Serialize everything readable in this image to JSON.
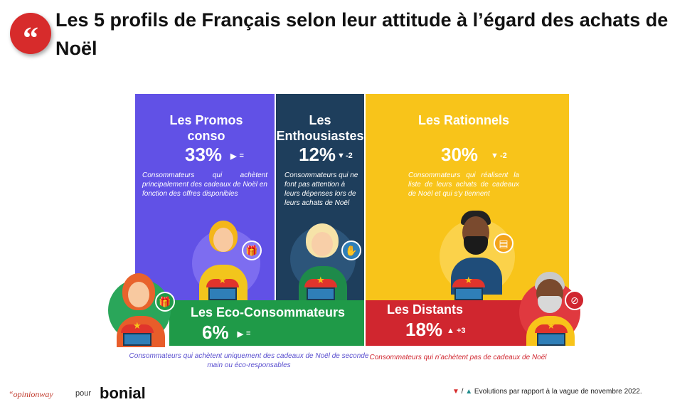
{
  "header": {
    "quote_mark": "“",
    "title": "Les 5 profils de Français selon leur attitude à l’égard des achats de Noël"
  },
  "colors": {
    "purple": "#6151e6",
    "navy": "#1e3e5c",
    "yellow": "#f8c41a",
    "green": "#1f9a48",
    "red": "#d0262f",
    "quote_red": "#d72b2b",
    "arrow_down": "#d62b2b",
    "arrow_up": "#1f8c8c"
  },
  "chart_data": {
    "type": "treemap",
    "segments": [
      {
        "name": "Les Promos conso",
        "value": 33,
        "evolution": "=",
        "evolution_symbol": "▶",
        "description": "Consommateurs qui achètent principalement des cadeaux de Noël en fonction des offres disponibles"
      },
      {
        "name": "Les Enthousiastes",
        "value": 12,
        "evolution": "-2",
        "evolution_symbol": "▼",
        "description": "Consommateurs qui ne font pas attention à leurs dépenses lors de leurs achats de Noël"
      },
      {
        "name": "Les Rationnels",
        "value": 30,
        "evolution": "-2",
        "evolution_symbol": "▼",
        "description": "Consommateurs qui réalisent la liste de leurs achats de cadeaux de Noël et qui s'y tiennent"
      },
      {
        "name": "Les Eco-Consommateurs",
        "value": 6,
        "evolution": "=",
        "evolution_symbol": "▶",
        "description": "Consommateurs qui achètent uniquement des cadeaux de Noël de seconde main ou éco-responsables"
      },
      {
        "name": "Les Distants",
        "value": 18,
        "evolution": "+3",
        "evolution_symbol": "▲",
        "description": "Consommateurs qui n’achètent pas de cadeaux de Noël"
      }
    ],
    "unit": "%"
  },
  "panels": {
    "promos": {
      "name": "Les Promos conso",
      "pct": "33%",
      "sym": "▶",
      "evo": "=",
      "desc": "Consommateurs qui achètent principalement des cadeaux de Noël en fonction des offres disponibles"
    },
    "enthousiastes": {
      "name": "Les Enthousiastes",
      "pct": "12%",
      "sym": "▼",
      "evo": "-2",
      "desc": "Consommateurs qui ne font pas attention à leurs dépenses lors de leurs achats de Noël"
    },
    "rationnels": {
      "name": "Les Rationnels",
      "pct": "30%",
      "sym": "▼",
      "evo": "-2",
      "desc": "Consommateurs qui réalisent la liste de leurs achats de cadeaux de Noël et qui s'y tiennent"
    },
    "eco": {
      "name": "Les Eco-Consommateurs",
      "pct": "6%",
      "sym": "▶",
      "evo": "=",
      "desc": "Consommateurs qui achètent uniquement des cadeaux de Noël de seconde main ou éco-responsables"
    },
    "distants": {
      "name": "Les Distants",
      "pct": "18%",
      "sym": "▲",
      "evo": "+3",
      "desc": "Consommateurs qui n’achètent pas de cadeaux de Noël"
    }
  },
  "footer": {
    "brand_left": "“opinionway",
    "pour": "pour",
    "brand_right": "bonial",
    "legend_down": "▼",
    "legend_sep": " / ",
    "legend_up": "▲",
    "legend_text": " Evolutions par rapport à la vague de novembre 2022."
  },
  "icons": [
    "quote-icon",
    "gift-icon",
    "hand-heart-icon",
    "checklist-icon",
    "recycle-gift-icon",
    "no-shopping-icon",
    "shop-icon"
  ]
}
